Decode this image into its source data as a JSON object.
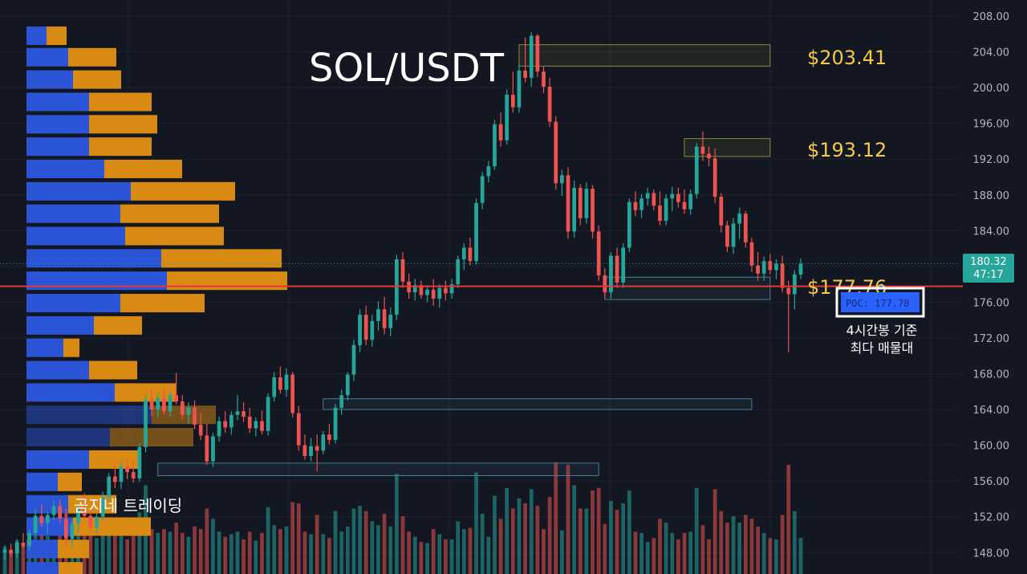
{
  "chart_data": {
    "type": "candlestick",
    "title": "SOL/USDT",
    "watermark": "곰지네 트레이딩",
    "y_axis": {
      "ticks": [
        "208.00",
        "204.00",
        "200.00",
        "196.00",
        "192.00",
        "188.00",
        "184.00",
        "180.00",
        "176.00",
        "172.00",
        "168.00",
        "164.00",
        "160.00",
        "156.00",
        "152.00",
        "148.00"
      ],
      "ylim": [
        145.6,
        209.8
      ]
    },
    "current_price": {
      "label": "180.32",
      "countdown": "47:17",
      "value": 180.32
    },
    "levels": [
      {
        "label": "$203.41",
        "value": 203.41
      },
      {
        "label": "$193.12",
        "value": 193.12
      },
      {
        "label": "$177.76",
        "value": 177.76
      }
    ],
    "poc": {
      "label": "POC: 177.78",
      "value": 177.78,
      "note_line1": "4시간봉 기준",
      "note_line2": "최다 매물대"
    },
    "zones": [
      {
        "from": 202.4,
        "to": 204.8,
        "type": "supply",
        "x_start": 84,
        "x_end": 125
      },
      {
        "from": 192.3,
        "to": 194.3,
        "type": "supply",
        "x_start": 111,
        "x_end": 125
      },
      {
        "from": 176.3,
        "to": 178.8,
        "type": "demand",
        "x_start": 98,
        "x_end": 125
      },
      {
        "from": 164.0,
        "to": 165.2,
        "type": "demand",
        "x_start": 52,
        "x_end": 122
      },
      {
        "from": 156.6,
        "to": 158.0,
        "type": "demand",
        "x_start": 25,
        "x_end": 97
      },
      {
        "from": 144.5,
        "to": 145.4,
        "type": "demand",
        "x_start": 0,
        "x_end": 108
      }
    ],
    "volume_profile": [
      {
        "price": 205.8,
        "up": 25,
        "down": 25
      },
      {
        "price": 203.4,
        "up": 52,
        "down": 60
      },
      {
        "price": 200.9,
        "up": 58,
        "down": 60
      },
      {
        "price": 198.4,
        "up": 78,
        "down": 78
      },
      {
        "price": 195.9,
        "up": 78,
        "down": 85
      },
      {
        "price": 193.4,
        "up": 78,
        "down": 78
      },
      {
        "price": 190.9,
        "up": 97,
        "down": 97
      },
      {
        "price": 188.4,
        "up": 130,
        "down": 130
      },
      {
        "price": 185.9,
        "up": 117,
        "down": 123
      },
      {
        "price": 183.4,
        "up": 123,
        "down": 123
      },
      {
        "price": 180.9,
        "up": 168,
        "down": 150
      },
      {
        "price": 178.4,
        "up": 175,
        "down": 150
      },
      {
        "price": 175.9,
        "up": 117,
        "down": 105
      },
      {
        "price": 173.4,
        "up": 84,
        "down": 60
      },
      {
        "price": 170.9,
        "up": 46,
        "down": 20
      },
      {
        "price": 168.4,
        "up": 78,
        "down": 60
      },
      {
        "price": 165.9,
        "up": 110,
        "down": 76
      },
      {
        "price": 163.4,
        "up": 156,
        "down": 80
      },
      {
        "price": 160.9,
        "up": 104,
        "down": 104
      },
      {
        "price": 158.4,
        "up": 78,
        "down": 65
      },
      {
        "price": 155.9,
        "up": 39,
        "down": 30
      },
      {
        "price": 153.4,
        "up": 52,
        "down": 60
      },
      {
        "price": 150.9,
        "up": 58,
        "down": 97
      },
      {
        "price": 148.4,
        "up": 39,
        "down": 39
      },
      {
        "price": 145.9,
        "up": 40,
        "down": 30
      }
    ],
    "candles": [
      [
        148.0,
        148.8,
        147.2,
        148.3
      ],
      [
        148.3,
        149.0,
        147.6,
        147.9
      ],
      [
        147.9,
        149.5,
        147.4,
        149.1
      ],
      [
        149.1,
        150.2,
        148.5,
        148.7
      ],
      [
        148.7,
        150.6,
        148.2,
        150.2
      ],
      [
        150.2,
        152.8,
        149.8,
        152.1
      ],
      [
        152.1,
        153.4,
        150.9,
        151.3
      ],
      [
        151.3,
        152.6,
        150.1,
        152.2
      ],
      [
        152.2,
        153.8,
        151.6,
        153.2
      ],
      [
        153.2,
        153.9,
        151.2,
        151.8
      ],
      [
        151.8,
        152.9,
        148.6,
        149.6
      ],
      [
        149.6,
        151.8,
        148.6,
        151.2
      ],
      [
        151.2,
        153.4,
        150.2,
        152.9
      ],
      [
        152.9,
        154.6,
        151.8,
        152.1
      ],
      [
        152.1,
        153.2,
        150.4,
        150.8
      ],
      [
        150.8,
        152.4,
        150.1,
        152.0
      ],
      [
        152.0,
        154.8,
        151.6,
        154.2
      ],
      [
        154.2,
        156.9,
        153.8,
        156.5
      ],
      [
        156.5,
        157.8,
        155.2,
        155.9
      ],
      [
        155.9,
        158.2,
        155.1,
        157.6
      ],
      [
        157.6,
        158.4,
        156.2,
        157.0
      ],
      [
        157.0,
        158.3,
        155.8,
        156.3
      ],
      [
        156.3,
        160.2,
        155.9,
        159.8
      ],
      [
        159.8,
        165.6,
        159.2,
        165.1
      ],
      [
        165.1,
        166.2,
        163.2,
        164.0
      ],
      [
        164.0,
        165.8,
        163.1,
        165.3
      ],
      [
        165.3,
        166.4,
        163.4,
        163.8
      ],
      [
        163.8,
        166.0,
        163.2,
        165.6
      ],
      [
        165.6,
        168.1,
        164.6,
        164.9
      ],
      [
        164.9,
        165.6,
        162.9,
        163.4
      ],
      [
        163.4,
        164.8,
        162.4,
        164.2
      ],
      [
        164.2,
        165.0,
        161.8,
        162.3
      ],
      [
        162.3,
        163.6,
        160.6,
        161.1
      ],
      [
        161.1,
        162.4,
        157.8,
        158.2
      ],
      [
        158.2,
        161.4,
        157.6,
        161.0
      ],
      [
        161.0,
        163.2,
        160.4,
        162.7
      ],
      [
        162.7,
        163.8,
        161.4,
        162.0
      ],
      [
        162.0,
        163.8,
        161.2,
        163.4
      ],
      [
        163.4,
        165.6,
        162.8,
        163.8
      ],
      [
        163.8,
        164.8,
        162.6,
        163.2
      ],
      [
        163.2,
        164.2,
        161.4,
        161.9
      ],
      [
        161.9,
        163.1,
        161.0,
        162.7
      ],
      [
        162.7,
        163.9,
        161.2,
        161.6
      ],
      [
        161.6,
        165.8,
        161.1,
        165.4
      ],
      [
        165.4,
        168.2,
        164.9,
        167.6
      ],
      [
        167.6,
        168.8,
        165.8,
        166.2
      ],
      [
        166.2,
        168.6,
        165.4,
        167.9
      ],
      [
        167.9,
        168.2,
        163.1,
        163.6
      ],
      [
        163.6,
        164.4,
        159.4,
        160.0
      ],
      [
        160.0,
        161.2,
        158.4,
        158.8
      ],
      [
        158.8,
        160.8,
        158.2,
        159.9
      ],
      [
        159.9,
        161.2,
        157.1,
        159.4
      ],
      [
        159.4,
        161.6,
        159.0,
        161.2
      ],
      [
        161.2,
        162.4,
        160.1,
        160.6
      ],
      [
        160.6,
        164.6,
        160.2,
        164.2
      ],
      [
        164.2,
        166.2,
        163.4,
        165.6
      ],
      [
        165.6,
        168.2,
        165.0,
        167.9
      ],
      [
        167.9,
        171.8,
        167.2,
        171.2
      ],
      [
        171.2,
        175.2,
        170.4,
        174.6
      ],
      [
        174.6,
        175.6,
        171.2,
        171.8
      ],
      [
        171.8,
        174.6,
        171.0,
        173.9
      ],
      [
        173.9,
        176.1,
        172.8,
        175.2
      ],
      [
        175.2,
        176.6,
        172.4,
        173.1
      ],
      [
        173.1,
        175.4,
        172.2,
        174.6
      ],
      [
        174.6,
        181.3,
        174.0,
        180.8
      ],
      [
        180.8,
        181.6,
        177.6,
        178.3
      ],
      [
        178.3,
        179.2,
        176.4,
        177.1
      ],
      [
        177.1,
        178.6,
        176.2,
        177.9
      ],
      [
        177.9,
        178.4,
        176.4,
        176.8
      ],
      [
        176.8,
        177.9,
        176.0,
        177.4
      ],
      [
        177.4,
        178.6,
        175.6,
        176.4
      ],
      [
        176.4,
        178.0,
        175.4,
        177.6
      ],
      [
        177.6,
        178.4,
        176.2,
        177.0
      ],
      [
        177.0,
        178.6,
        176.4,
        178.0
      ],
      [
        178.0,
        181.2,
        177.6,
        180.8
      ],
      [
        180.8,
        182.6,
        179.6,
        182.1
      ],
      [
        182.1,
        183.2,
        180.1,
        180.6
      ],
      [
        180.6,
        187.6,
        180.2,
        187.1
      ],
      [
        187.1,
        190.6,
        186.4,
        190.1
      ],
      [
        190.1,
        191.8,
        189.4,
        191.2
      ],
      [
        191.2,
        196.4,
        190.8,
        195.9
      ],
      [
        195.9,
        197.2,
        193.4,
        194.1
      ],
      [
        194.1,
        199.8,
        193.6,
        199.2
      ],
      [
        199.2,
        201.8,
        197.2,
        197.8
      ],
      [
        197.8,
        202.6,
        197.2,
        201.9
      ],
      [
        201.9,
        205.6,
        200.6,
        201.1
      ],
      [
        201.1,
        206.2,
        200.1,
        205.8
      ],
      [
        205.8,
        206.0,
        201.2,
        201.8
      ],
      [
        201.8,
        202.4,
        199.4,
        200.1
      ],
      [
        200.1,
        201.1,
        195.6,
        196.2
      ],
      [
        196.2,
        196.8,
        188.6,
        189.3
      ],
      [
        189.3,
        190.8,
        187.9,
        190.2
      ],
      [
        190.2,
        191.1,
        183.1,
        183.9
      ],
      [
        183.9,
        189.6,
        183.2,
        188.8
      ],
      [
        188.8,
        189.2,
        184.6,
        185.4
      ],
      [
        185.4,
        189.4,
        184.8,
        188.7
      ],
      [
        188.7,
        189.1,
        183.1,
        183.9
      ],
      [
        183.9,
        184.6,
        178.4,
        179.0
      ],
      [
        179.0,
        179.8,
        176.4,
        177.1
      ],
      [
        177.1,
        181.6,
        176.4,
        181.2
      ],
      [
        181.2,
        182.1,
        177.6,
        178.2
      ],
      [
        178.2,
        182.6,
        177.6,
        182.1
      ],
      [
        182.1,
        187.6,
        181.6,
        187.2
      ],
      [
        187.2,
        188.4,
        185.6,
        186.3
      ],
      [
        186.3,
        188.1,
        185.4,
        187.6
      ],
      [
        187.6,
        188.8,
        186.8,
        188.2
      ],
      [
        188.2,
        188.6,
        186.3,
        186.8
      ],
      [
        186.8,
        188.4,
        184.6,
        185.1
      ],
      [
        185.1,
        188.1,
        184.6,
        187.6
      ],
      [
        187.6,
        188.9,
        186.2,
        188.1
      ],
      [
        188.1,
        188.8,
        186.6,
        187.2
      ],
      [
        187.2,
        188.6,
        185.9,
        186.4
      ],
      [
        186.4,
        188.6,
        185.8,
        188.1
      ],
      [
        188.1,
        193.8,
        187.6,
        193.4
      ],
      [
        193.4,
        195.1,
        191.8,
        192.6
      ],
      [
        192.6,
        193.4,
        191.2,
        192.1
      ],
      [
        192.1,
        193.2,
        187.1,
        187.8
      ],
      [
        187.8,
        188.2,
        183.8,
        184.6
      ],
      [
        184.6,
        185.1,
        181.6,
        182.2
      ],
      [
        182.2,
        185.4,
        181.4,
        184.8
      ],
      [
        184.8,
        186.6,
        183.1,
        185.9
      ],
      [
        185.9,
        186.2,
        182.1,
        182.7
      ],
      [
        182.7,
        183.2,
        179.4,
        180.1
      ],
      [
        180.1,
        181.6,
        178.4,
        179.2
      ],
      [
        179.2,
        181.1,
        178.4,
        180.6
      ],
      [
        180.6,
        181.4,
        179.1,
        179.6
      ],
      [
        179.6,
        180.8,
        178.6,
        180.3
      ],
      [
        180.3,
        181.2,
        177.1,
        177.6
      ],
      [
        177.6,
        178.4,
        170.4,
        176.9
      ],
      [
        176.9,
        179.6,
        175.2,
        179.1
      ],
      [
        179.1,
        180.9,
        178.6,
        180.32
      ]
    ]
  }
}
